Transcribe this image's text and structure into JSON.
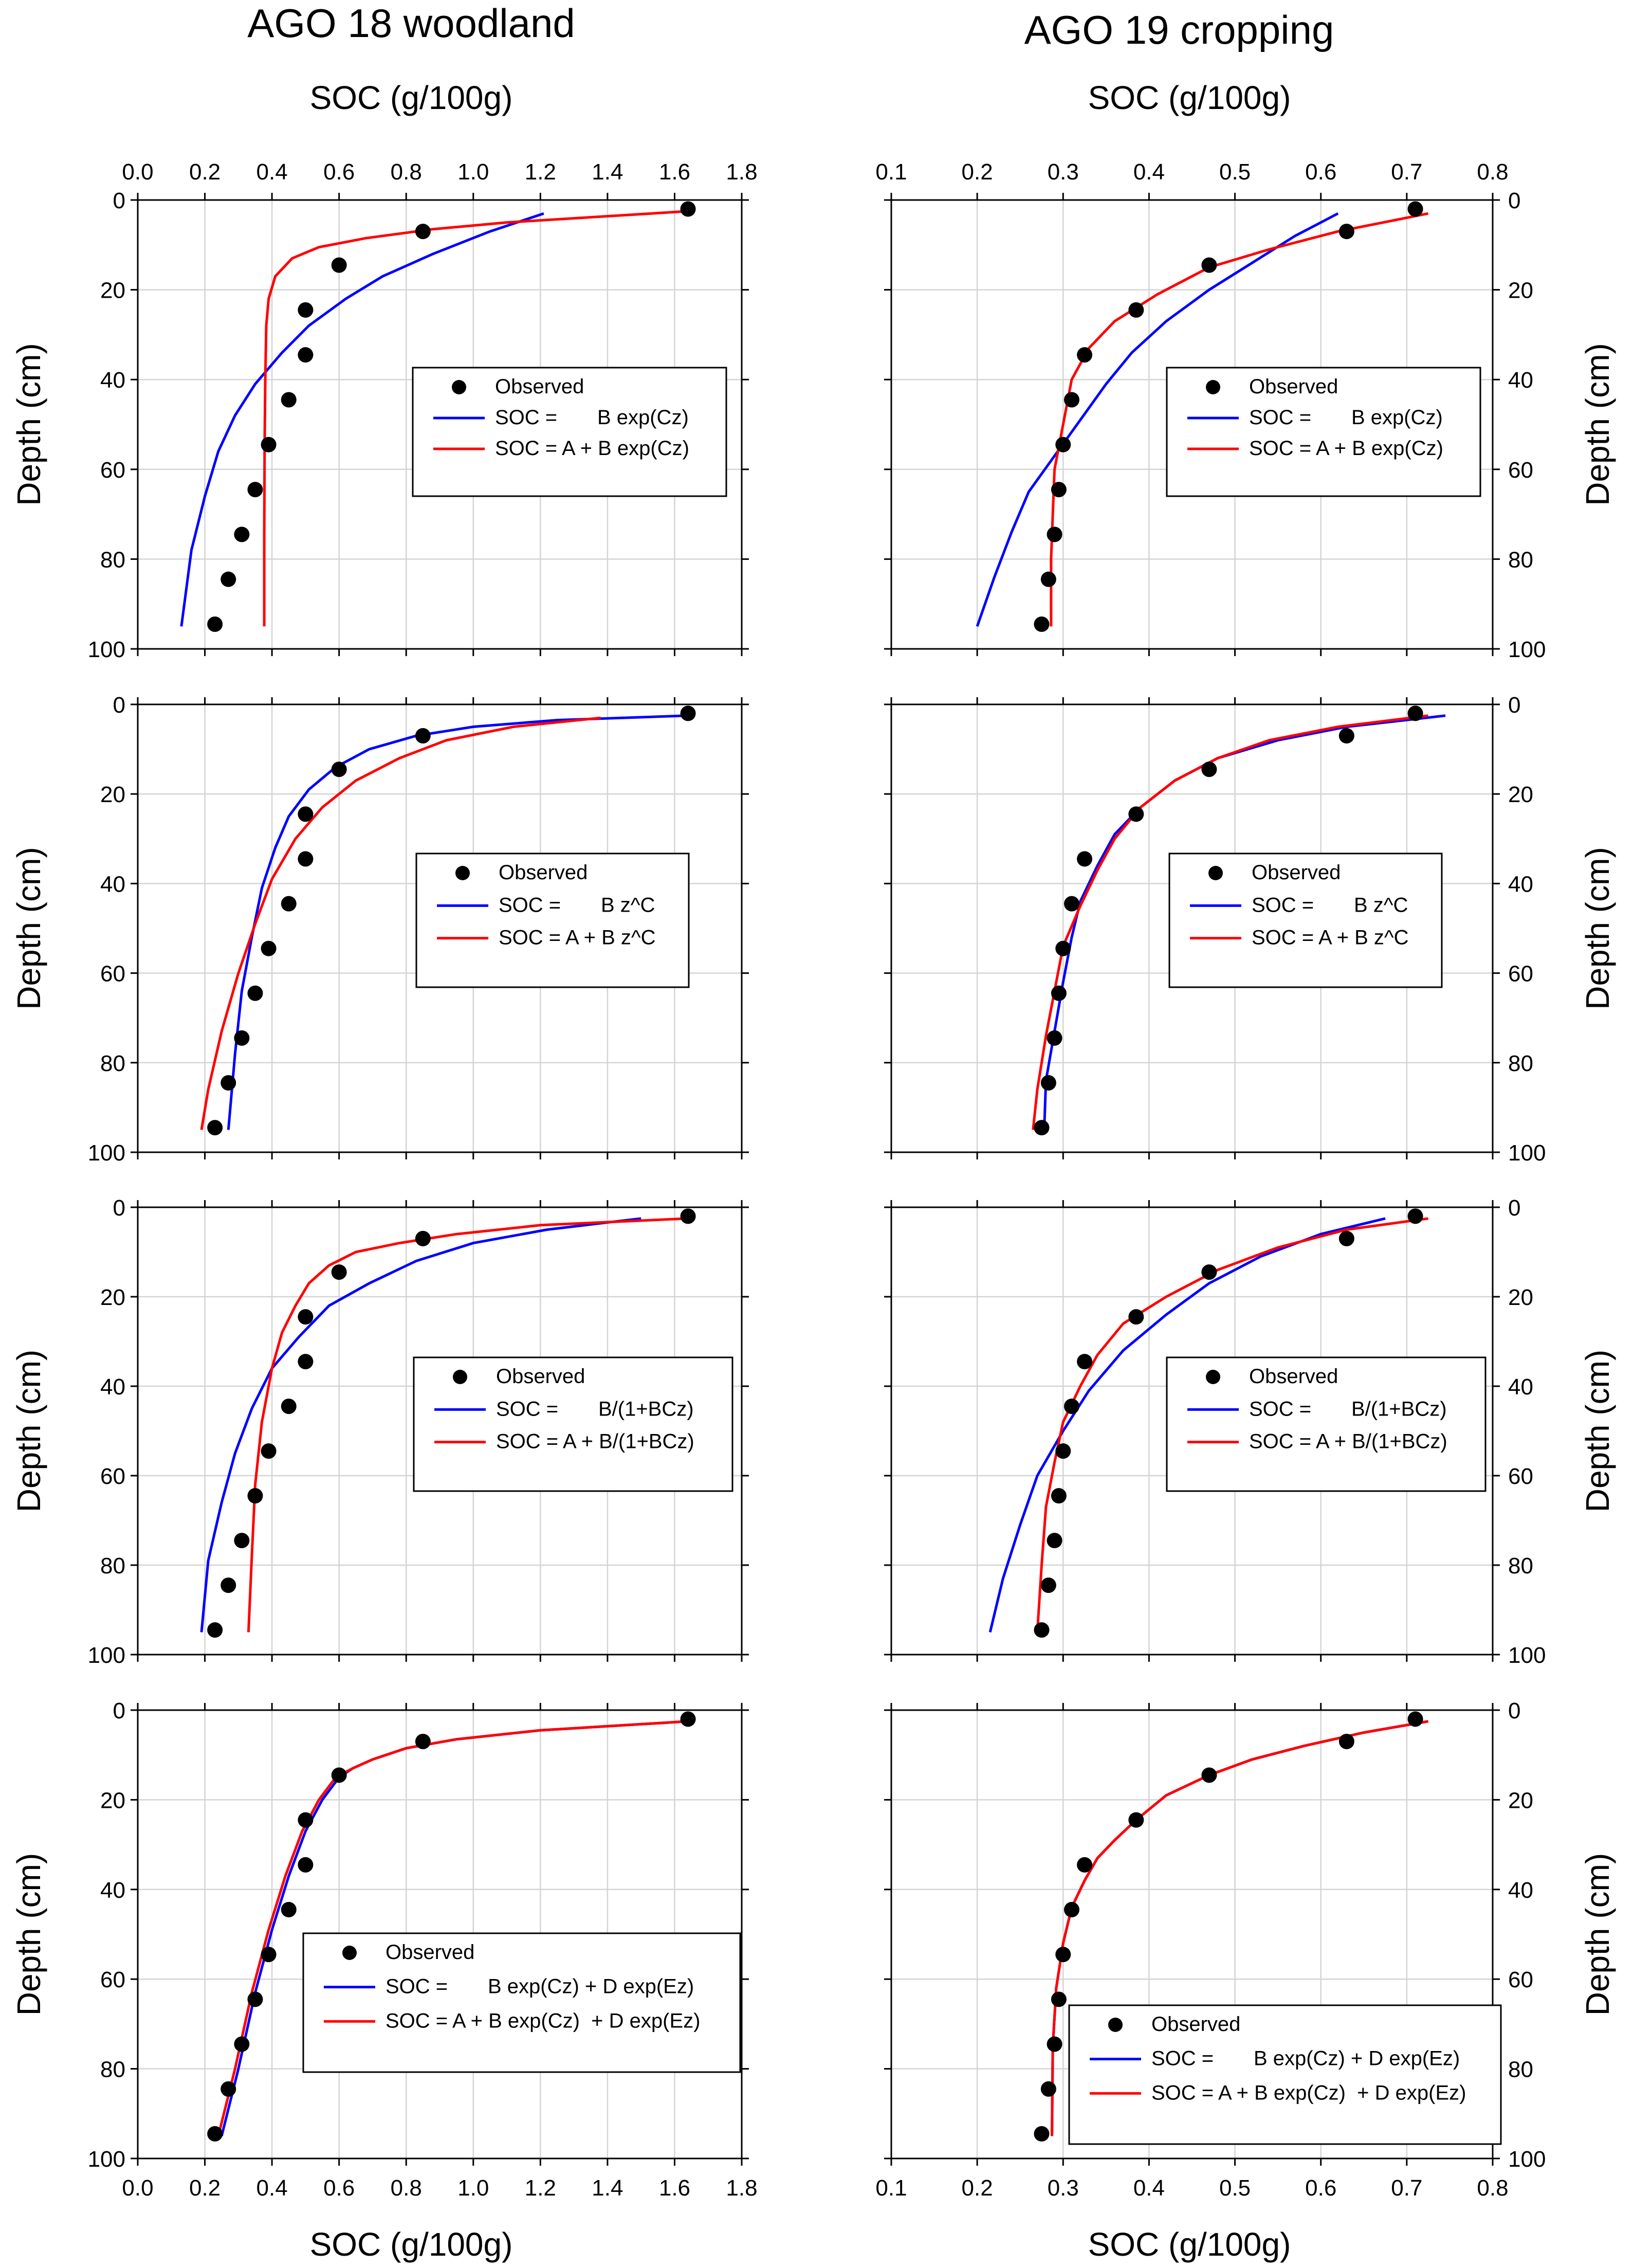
{
  "figure": {
    "left_title": "AGO 18 woodland",
    "right_title": "AGO 19 cropping",
    "xlabel": "SOC (g/100g)",
    "ylabel": "Depth (cm)",
    "colors": {
      "observed": "#000000",
      "fit_1": "#0000ff",
      "fit_2": "#ff0000",
      "grid": "#d4d4d4"
    }
  },
  "chart_data": [
    {
      "type": "scatter",
      "site": "AGO 18 woodland",
      "row": 1,
      "column": "left",
      "xlim": [
        0,
        1.8
      ],
      "ylim": [
        0,
        100
      ],
      "y_inverted": true,
      "grid": true,
      "x_ticks": [
        "0.0",
        "0.2",
        "0.4",
        "0.6",
        "0.8",
        "1.0",
        "1.2",
        "1.4",
        "1.6",
        "1.8"
      ],
      "y_ticks": [
        "0",
        "20",
        "40",
        "60",
        "80",
        "100"
      ],
      "observed": {
        "name": "Observed",
        "x": [
          1.64,
          0.85,
          0.6,
          0.5,
          0.5,
          0.45,
          0.39,
          0.35,
          0.31,
          0.27,
          0.23
        ],
        "y": [
          2,
          7,
          14.5,
          24.5,
          34.5,
          44.5,
          54.5,
          64.5,
          74.5,
          84.5,
          94.5
        ]
      },
      "series": [
        {
          "name": "SOC =       B exp(Cz)",
          "color": "#0000ff",
          "x": [
            1.21,
            1.05,
            0.88,
            0.73,
            0.62,
            0.51,
            0.43,
            0.35,
            0.29,
            0.24,
            0.2,
            0.16,
            0.13
          ],
          "y": [
            3,
            7,
            12,
            17,
            22,
            28,
            34,
            41,
            48,
            56,
            66,
            78,
            95
          ]
        },
        {
          "name": "SOC = A + B exp(Cz)",
          "color": "#ff0000",
          "x": [
            1.64,
            1.1,
            0.88,
            0.68,
            0.54,
            0.46,
            0.41,
            0.39,
            0.383,
            0.38,
            0.378,
            0.377,
            0.377
          ],
          "y": [
            2.5,
            5,
            6.5,
            8.5,
            10.5,
            13,
            17,
            22,
            28,
            40,
            55,
            75,
            95
          ]
        }
      ]
    },
    {
      "type": "scatter",
      "site": "AGO 19 cropping",
      "row": 1,
      "column": "right",
      "xlim": [
        0.1,
        0.8
      ],
      "ylim": [
        0,
        100
      ],
      "y_inverted": true,
      "grid": true,
      "x_ticks": [
        "0.1",
        "0.2",
        "0.3",
        "0.4",
        "0.5",
        "0.6",
        "0.7",
        "0.8"
      ],
      "y_ticks": [
        "0",
        "20",
        "40",
        "60",
        "80",
        "100"
      ],
      "observed": {
        "name": "Observed",
        "x": [
          0.71,
          0.63,
          0.47,
          0.385,
          0.325,
          0.31,
          0.3,
          0.295,
          0.29,
          0.283,
          0.275
        ],
        "y": [
          2,
          7,
          14.5,
          24.5,
          34.5,
          44.5,
          54.5,
          64.5,
          74.5,
          84.5,
          94.5
        ]
      },
      "series": [
        {
          "name": "SOC =       B exp(Cz)",
          "color": "#0000ff",
          "x": [
            0.62,
            0.57,
            0.52,
            0.47,
            0.42,
            0.38,
            0.35,
            0.32,
            0.29,
            0.26,
            0.24,
            0.22,
            0.2
          ],
          "y": [
            3,
            8,
            14,
            20,
            27,
            34,
            41,
            49,
            57,
            65,
            74,
            84,
            95
          ]
        },
        {
          "name": "SOC = A + B exp(Cz)",
          "color": "#ff0000",
          "x": [
            0.725,
            0.62,
            0.54,
            0.47,
            0.41,
            0.36,
            0.33,
            0.31,
            0.3,
            0.29,
            0.288,
            0.286,
            0.286
          ],
          "y": [
            3,
            7,
            11,
            15,
            21,
            27,
            33,
            40,
            50,
            60,
            70,
            80,
            95
          ]
        }
      ]
    },
    {
      "type": "scatter",
      "site": "AGO 18 woodland",
      "row": 2,
      "column": "left",
      "xlim": [
        0,
        1.8
      ],
      "ylim": [
        0,
        100
      ],
      "y_inverted": true,
      "grid": true,
      "x_ticks": [
        "0.0",
        "0.2",
        "0.4",
        "0.6",
        "0.8",
        "1.0",
        "1.2",
        "1.4",
        "1.6",
        "1.8"
      ],
      "y_ticks": [
        "0",
        "20",
        "40",
        "60",
        "80",
        "100"
      ],
      "observed": {
        "name": "Observed",
        "x": [
          1.64,
          0.85,
          0.6,
          0.5,
          0.5,
          0.45,
          0.39,
          0.35,
          0.31,
          0.27,
          0.23
        ],
        "y": [
          2,
          7,
          14.5,
          24.5,
          34.5,
          44.5,
          54.5,
          64.5,
          74.5,
          84.5,
          94.5
        ]
      },
      "series": [
        {
          "name": "SOC =       B z^C",
          "color": "#0000ff",
          "x": [
            1.64,
            1.25,
            1.0,
            0.83,
            0.69,
            0.59,
            0.51,
            0.45,
            0.41,
            0.37,
            0.34,
            0.31,
            0.29,
            0.27
          ],
          "y": [
            2.5,
            3.5,
            5,
            7,
            10,
            14,
            19,
            25,
            32,
            41,
            52,
            64,
            78,
            95
          ]
        },
        {
          "name": "SOC = A + B z^C",
          "color": "#ff0000",
          "x": [
            1.38,
            1.12,
            0.92,
            0.78,
            0.65,
            0.55,
            0.47,
            0.4,
            0.35,
            0.3,
            0.25,
            0.21,
            0.19
          ],
          "y": [
            3,
            5,
            8,
            12,
            17,
            23,
            30,
            39,
            49,
            60,
            73,
            86,
            95
          ]
        }
      ]
    },
    {
      "type": "scatter",
      "site": "AGO 19 cropping",
      "row": 2,
      "column": "right",
      "xlim": [
        0.1,
        0.8
      ],
      "ylim": [
        0,
        100
      ],
      "y_inverted": true,
      "grid": true,
      "x_ticks": [
        "0.1",
        "0.2",
        "0.3",
        "0.4",
        "0.5",
        "0.6",
        "0.7",
        "0.8"
      ],
      "y_ticks": [
        "0",
        "20",
        "40",
        "60",
        "80",
        "100"
      ],
      "observed": {
        "name": "Observed",
        "x": [
          0.71,
          0.63,
          0.47,
          0.385,
          0.325,
          0.31,
          0.3,
          0.295,
          0.29,
          0.283,
          0.275
        ],
        "y": [
          2,
          7,
          14.5,
          24.5,
          34.5,
          44.5,
          54.5,
          64.5,
          74.5,
          84.5,
          94.5
        ]
      },
      "series": [
        {
          "name": "SOC =       B z^C",
          "color": "#0000ff",
          "x": [
            0.745,
            0.63,
            0.55,
            0.48,
            0.43,
            0.39,
            0.36,
            0.34,
            0.32,
            0.31,
            0.3,
            0.29,
            0.28,
            0.278
          ],
          "y": [
            2.5,
            5,
            8,
            12,
            17,
            23,
            29,
            36,
            44,
            52,
            62,
            73,
            84,
            95
          ]
        },
        {
          "name": "SOC = A + B z^C",
          "color": "#ff0000",
          "x": [
            0.725,
            0.62,
            0.54,
            0.48,
            0.43,
            0.39,
            0.36,
            0.34,
            0.32,
            0.3,
            0.29,
            0.28,
            0.27,
            0.265
          ],
          "y": [
            2.5,
            5,
            8,
            12,
            17,
            23,
            30,
            37,
            45,
            54,
            64,
            74,
            86,
            95
          ]
        }
      ]
    },
    {
      "type": "scatter",
      "site": "AGO 18 woodland",
      "row": 3,
      "column": "left",
      "xlim": [
        0,
        1.8
      ],
      "ylim": [
        0,
        100
      ],
      "y_inverted": true,
      "grid": true,
      "x_ticks": [
        "0.0",
        "0.2",
        "0.4",
        "0.6",
        "0.8",
        "1.0",
        "1.2",
        "1.4",
        "1.6",
        "1.8"
      ],
      "y_ticks": [
        "0",
        "20",
        "40",
        "60",
        "80",
        "100"
      ],
      "observed": {
        "name": "Observed",
        "x": [
          1.64,
          0.85,
          0.6,
          0.5,
          0.5,
          0.45,
          0.39,
          0.35,
          0.31,
          0.27,
          0.23
        ],
        "y": [
          2,
          7,
          14.5,
          24.5,
          34.5,
          44.5,
          54.5,
          64.5,
          74.5,
          84.5,
          94.5
        ]
      },
      "series": [
        {
          "name": "SOC =       B/(1+BCz)",
          "color": "#0000ff",
          "x": [
            1.5,
            1.22,
            1.0,
            0.83,
            0.69,
            0.57,
            0.48,
            0.4,
            0.34,
            0.29,
            0.25,
            0.21,
            0.19
          ],
          "y": [
            2.5,
            5,
            8,
            12,
            17,
            22,
            29,
            36,
            45,
            55,
            66,
            79,
            95
          ]
        },
        {
          "name": "SOC = A + B/(1+BCz)",
          "color": "#ff0000",
          "x": [
            1.64,
            1.2,
            0.95,
            0.78,
            0.65,
            0.57,
            0.51,
            0.47,
            0.43,
            0.4,
            0.37,
            0.35,
            0.34,
            0.33
          ],
          "y": [
            2.5,
            4,
            6,
            8,
            10,
            13,
            17,
            22,
            28,
            36,
            48,
            62,
            78,
            95
          ]
        }
      ]
    },
    {
      "type": "scatter",
      "site": "AGO 19 cropping",
      "row": 3,
      "column": "right",
      "xlim": [
        0.1,
        0.8
      ],
      "ylim": [
        0,
        100
      ],
      "y_inverted": true,
      "grid": true,
      "x_ticks": [
        "0.1",
        "0.2",
        "0.3",
        "0.4",
        "0.5",
        "0.6",
        "0.7",
        "0.8"
      ],
      "y_ticks": [
        "0",
        "20",
        "40",
        "60",
        "80",
        "100"
      ],
      "observed": {
        "name": "Observed",
        "x": [
          0.71,
          0.63,
          0.47,
          0.385,
          0.325,
          0.31,
          0.3,
          0.295,
          0.29,
          0.283,
          0.275
        ],
        "y": [
          2,
          7,
          14.5,
          24.5,
          34.5,
          44.5,
          54.5,
          64.5,
          74.5,
          84.5,
          94.5
        ]
      },
      "series": [
        {
          "name": "SOC =       B/(1+BCz)",
          "color": "#0000ff",
          "x": [
            0.675,
            0.6,
            0.53,
            0.47,
            0.42,
            0.37,
            0.33,
            0.3,
            0.27,
            0.25,
            0.23,
            0.215
          ],
          "y": [
            2.5,
            6,
            11,
            17,
            24,
            32,
            41,
            50,
            60,
            71,
            83,
            95
          ]
        },
        {
          "name": "SOC = A + B/(1+BCz)",
          "color": "#ff0000",
          "x": [
            0.725,
            0.63,
            0.55,
            0.48,
            0.42,
            0.37,
            0.34,
            0.32,
            0.3,
            0.29,
            0.28,
            0.275,
            0.27
          ],
          "y": [
            2.5,
            5,
            9,
            14,
            20,
            26,
            33,
            40,
            48,
            57,
            67,
            80,
            95
          ]
        }
      ]
    },
    {
      "type": "scatter",
      "site": "AGO 18 woodland",
      "row": 4,
      "column": "left",
      "xlim": [
        0,
        1.8
      ],
      "ylim": [
        0,
        100
      ],
      "y_inverted": true,
      "grid": true,
      "x_ticks": [
        "0.0",
        "0.2",
        "0.4",
        "0.6",
        "0.8",
        "1.0",
        "1.2",
        "1.4",
        "1.6",
        "1.8"
      ],
      "y_ticks": [
        "0",
        "20",
        "40",
        "60",
        "80",
        "100"
      ],
      "observed": {
        "name": "Observed",
        "x": [
          1.64,
          0.85,
          0.6,
          0.5,
          0.5,
          0.45,
          0.39,
          0.35,
          0.31,
          0.27,
          0.23
        ],
        "y": [
          2,
          7,
          14.5,
          24.5,
          34.5,
          44.5,
          54.5,
          64.5,
          74.5,
          84.5,
          94.5
        ]
      },
      "series": [
        {
          "name": "SOC =       B exp(Cz) + D exp(Ez)",
          "color": "#0000ff",
          "x": [
            1.64,
            1.2,
            0.95,
            0.8,
            0.7,
            0.64,
            0.6,
            0.55,
            0.5,
            0.45,
            0.4,
            0.35,
            0.3,
            0.25
          ],
          "y": [
            2.5,
            4.5,
            6.5,
            8.5,
            11,
            13,
            15,
            20,
            27,
            37,
            49,
            63,
            80,
            95
          ]
        },
        {
          "name": "SOC = A + B exp(Cz)  + D exp(Ez)",
          "color": "#ff0000",
          "x": [
            1.64,
            1.2,
            0.95,
            0.8,
            0.7,
            0.64,
            0.59,
            0.54,
            0.49,
            0.44,
            0.39,
            0.34,
            0.29,
            0.24
          ],
          "y": [
            2.5,
            4.5,
            6.5,
            8.5,
            11,
            13,
            15,
            20,
            27,
            37,
            49,
            63,
            80,
            95
          ]
        }
      ]
    },
    {
      "type": "scatter",
      "site": "AGO 19 cropping",
      "row": 4,
      "column": "right",
      "xlim": [
        0.1,
        0.8
      ],
      "ylim": [
        0,
        100
      ],
      "y_inverted": true,
      "grid": true,
      "x_ticks": [
        "0.1",
        "0.2",
        "0.3",
        "0.4",
        "0.5",
        "0.6",
        "0.7",
        "0.8"
      ],
      "y_ticks": [
        "0",
        "20",
        "40",
        "60",
        "80",
        "100"
      ],
      "observed": {
        "name": "Observed",
        "x": [
          0.71,
          0.63,
          0.47,
          0.385,
          0.325,
          0.31,
          0.3,
          0.295,
          0.29,
          0.283,
          0.275
        ],
        "y": [
          2,
          7,
          14.5,
          24.5,
          34.5,
          44.5,
          54.5,
          64.5,
          74.5,
          84.5,
          94.5
        ]
      },
      "series": [
        {
          "name": "SOC =       B exp(Cz) + D exp(Ez)",
          "color": "#0000ff",
          "x": [
            0.725,
            0.65,
            0.58,
            0.52,
            0.47,
            0.42,
            0.385,
            0.36,
            0.34,
            0.325,
            0.31,
            0.3,
            0.292,
            0.288,
            0.287
          ],
          "y": [
            2.5,
            5,
            8,
            11,
            14.5,
            19,
            24.5,
            29,
            33,
            38,
            44,
            52,
            62,
            75,
            95
          ]
        },
        {
          "name": "SOC = A + B exp(Cz)  + D exp(Ez)",
          "color": "#ff0000",
          "x": [
            0.725,
            0.65,
            0.58,
            0.52,
            0.47,
            0.42,
            0.385,
            0.36,
            0.34,
            0.325,
            0.31,
            0.3,
            0.292,
            0.288,
            0.287
          ],
          "y": [
            2.5,
            5,
            8,
            11,
            14.5,
            19,
            24.5,
            29,
            33,
            38,
            44,
            52,
            62,
            75,
            95
          ]
        }
      ]
    }
  ]
}
